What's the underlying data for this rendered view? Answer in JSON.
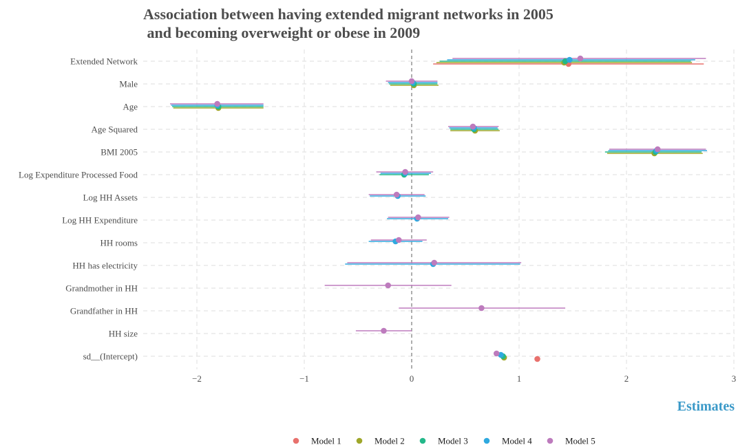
{
  "chart_data": {
    "type": "scatter",
    "title": "Association between having extended migrant networks in 2005\n and becoming overweight or obese in 2009",
    "xlabel": "Estimates",
    "ylabel": "",
    "xlim": [
      -2.5,
      3
    ],
    "xticks": [
      -2,
      -1,
      0,
      1,
      2,
      3
    ],
    "xtick_labels": [
      "−2",
      "−1",
      "0",
      "1",
      "2",
      "3"
    ],
    "reference_line": 0,
    "grid": true,
    "legend_position": "bottom",
    "categories": [
      "Extended Network",
      "Male",
      "Age",
      "Age Squared",
      "BMI 2005",
      "Log Expenditure Processed Food",
      "Log HH Assets",
      "Log HH Expenditure",
      "HH rooms",
      "HH has electricity",
      "Grandmother in HH",
      "Grandfather in HH",
      "HH size",
      "sd__(Intercept)"
    ],
    "series": [
      {
        "name": "Model 1",
        "color": "#e8716d",
        "points": [
          {
            "category": "Extended Network",
            "estimate": 1.46,
            "low": 0.2,
            "high": 2.72
          },
          {
            "category": "sd__(Intercept)",
            "estimate": 1.17,
            "low": null,
            "high": null
          }
        ]
      },
      {
        "name": "Model 2",
        "color": "#9fa72a",
        "points": [
          {
            "category": "Extended Network",
            "estimate": 1.42,
            "low": 0.23,
            "high": 2.61
          },
          {
            "category": "Male",
            "estimate": 0.02,
            "low": -0.2,
            "high": 0.25
          },
          {
            "category": "Age",
            "estimate": -1.8,
            "low": -2.22,
            "high": -1.38
          },
          {
            "category": "Age Squared",
            "estimate": 0.59,
            "low": 0.36,
            "high": 0.82
          },
          {
            "category": "BMI 2005",
            "estimate": 2.26,
            "low": 1.82,
            "high": 2.71
          },
          {
            "category": "sd__(Intercept)",
            "estimate": 0.86,
            "low": null,
            "high": null
          }
        ]
      },
      {
        "name": "Model 3",
        "color": "#23b88a",
        "points": [
          {
            "category": "Extended Network",
            "estimate": 1.43,
            "low": 0.26,
            "high": 2.6
          },
          {
            "category": "Male",
            "estimate": 0.02,
            "low": -0.21,
            "high": 0.24
          },
          {
            "category": "Age",
            "estimate": -1.8,
            "low": -2.23,
            "high": -1.38
          },
          {
            "category": "Age Squared",
            "estimate": 0.58,
            "low": 0.36,
            "high": 0.81
          },
          {
            "category": "BMI 2005",
            "estimate": 2.27,
            "low": 1.8,
            "high": 2.7
          },
          {
            "category": "Log Expenditure Processed Food",
            "estimate": -0.07,
            "low": -0.3,
            "high": 0.16
          },
          {
            "category": "sd__(Intercept)",
            "estimate": 0.85,
            "low": null,
            "high": null
          }
        ]
      },
      {
        "name": "Model 4",
        "color": "#2fa9df",
        "points": [
          {
            "category": "Extended Network",
            "estimate": 1.47,
            "low": 0.33,
            "high": 2.64
          },
          {
            "category": "Male",
            "estimate": 0.01,
            "low": -0.22,
            "high": 0.24
          },
          {
            "category": "Age",
            "estimate": -1.81,
            "low": -2.24,
            "high": -1.38
          },
          {
            "category": "Age Squared",
            "estimate": 0.58,
            "low": 0.35,
            "high": 0.8
          },
          {
            "category": "BMI 2005",
            "estimate": 2.28,
            "low": 1.83,
            "high": 2.75
          },
          {
            "category": "Log Expenditure Processed Food",
            "estimate": -0.06,
            "low": -0.29,
            "high": 0.18
          },
          {
            "category": "Log HH Assets",
            "estimate": -0.13,
            "low": -0.39,
            "high": 0.13
          },
          {
            "category": "Log HH Expenditure",
            "estimate": 0.05,
            "low": -0.23,
            "high": 0.34
          },
          {
            "category": "HH rooms",
            "estimate": -0.15,
            "low": -0.4,
            "high": 0.1
          },
          {
            "category": "HH has electricity",
            "estimate": 0.2,
            "low": -0.62,
            "high": 1.01
          },
          {
            "category": "sd__(Intercept)",
            "estimate": 0.83,
            "low": null,
            "high": null
          }
        ]
      },
      {
        "name": "Model 5",
        "color": "#bd7bbd",
        "points": [
          {
            "category": "Extended Network",
            "estimate": 1.57,
            "low": 0.38,
            "high": 2.74
          },
          {
            "category": "Male",
            "estimate": 0.0,
            "low": -0.24,
            "high": 0.24
          },
          {
            "category": "Age",
            "estimate": -1.81,
            "low": -2.25,
            "high": -1.38
          },
          {
            "category": "Age Squared",
            "estimate": 0.57,
            "low": 0.34,
            "high": 0.81
          },
          {
            "category": "BMI 2005",
            "estimate": 2.29,
            "low": 1.84,
            "high": 2.74
          },
          {
            "category": "Log Expenditure Processed Food",
            "estimate": -0.06,
            "low": -0.33,
            "high": 0.2
          },
          {
            "category": "Log HH Assets",
            "estimate": -0.14,
            "low": -0.4,
            "high": 0.12
          },
          {
            "category": "Log HH Expenditure",
            "estimate": 0.06,
            "low": -0.22,
            "high": 0.35
          },
          {
            "category": "HH rooms",
            "estimate": -0.12,
            "low": -0.38,
            "high": 0.14
          },
          {
            "category": "HH has electricity",
            "estimate": 0.21,
            "low": -0.6,
            "high": 1.02
          },
          {
            "category": "Grandmother in HH",
            "estimate": -0.22,
            "low": -0.81,
            "high": 0.37
          },
          {
            "category": "Grandfather in HH",
            "estimate": 0.65,
            "low": -0.12,
            "high": 1.43
          },
          {
            "category": "HH size",
            "estimate": -0.26,
            "low": -0.52,
            "high": 0.0
          },
          {
            "category": "sd__(Intercept)",
            "estimate": 0.79,
            "low": null,
            "high": null
          }
        ]
      }
    ]
  }
}
